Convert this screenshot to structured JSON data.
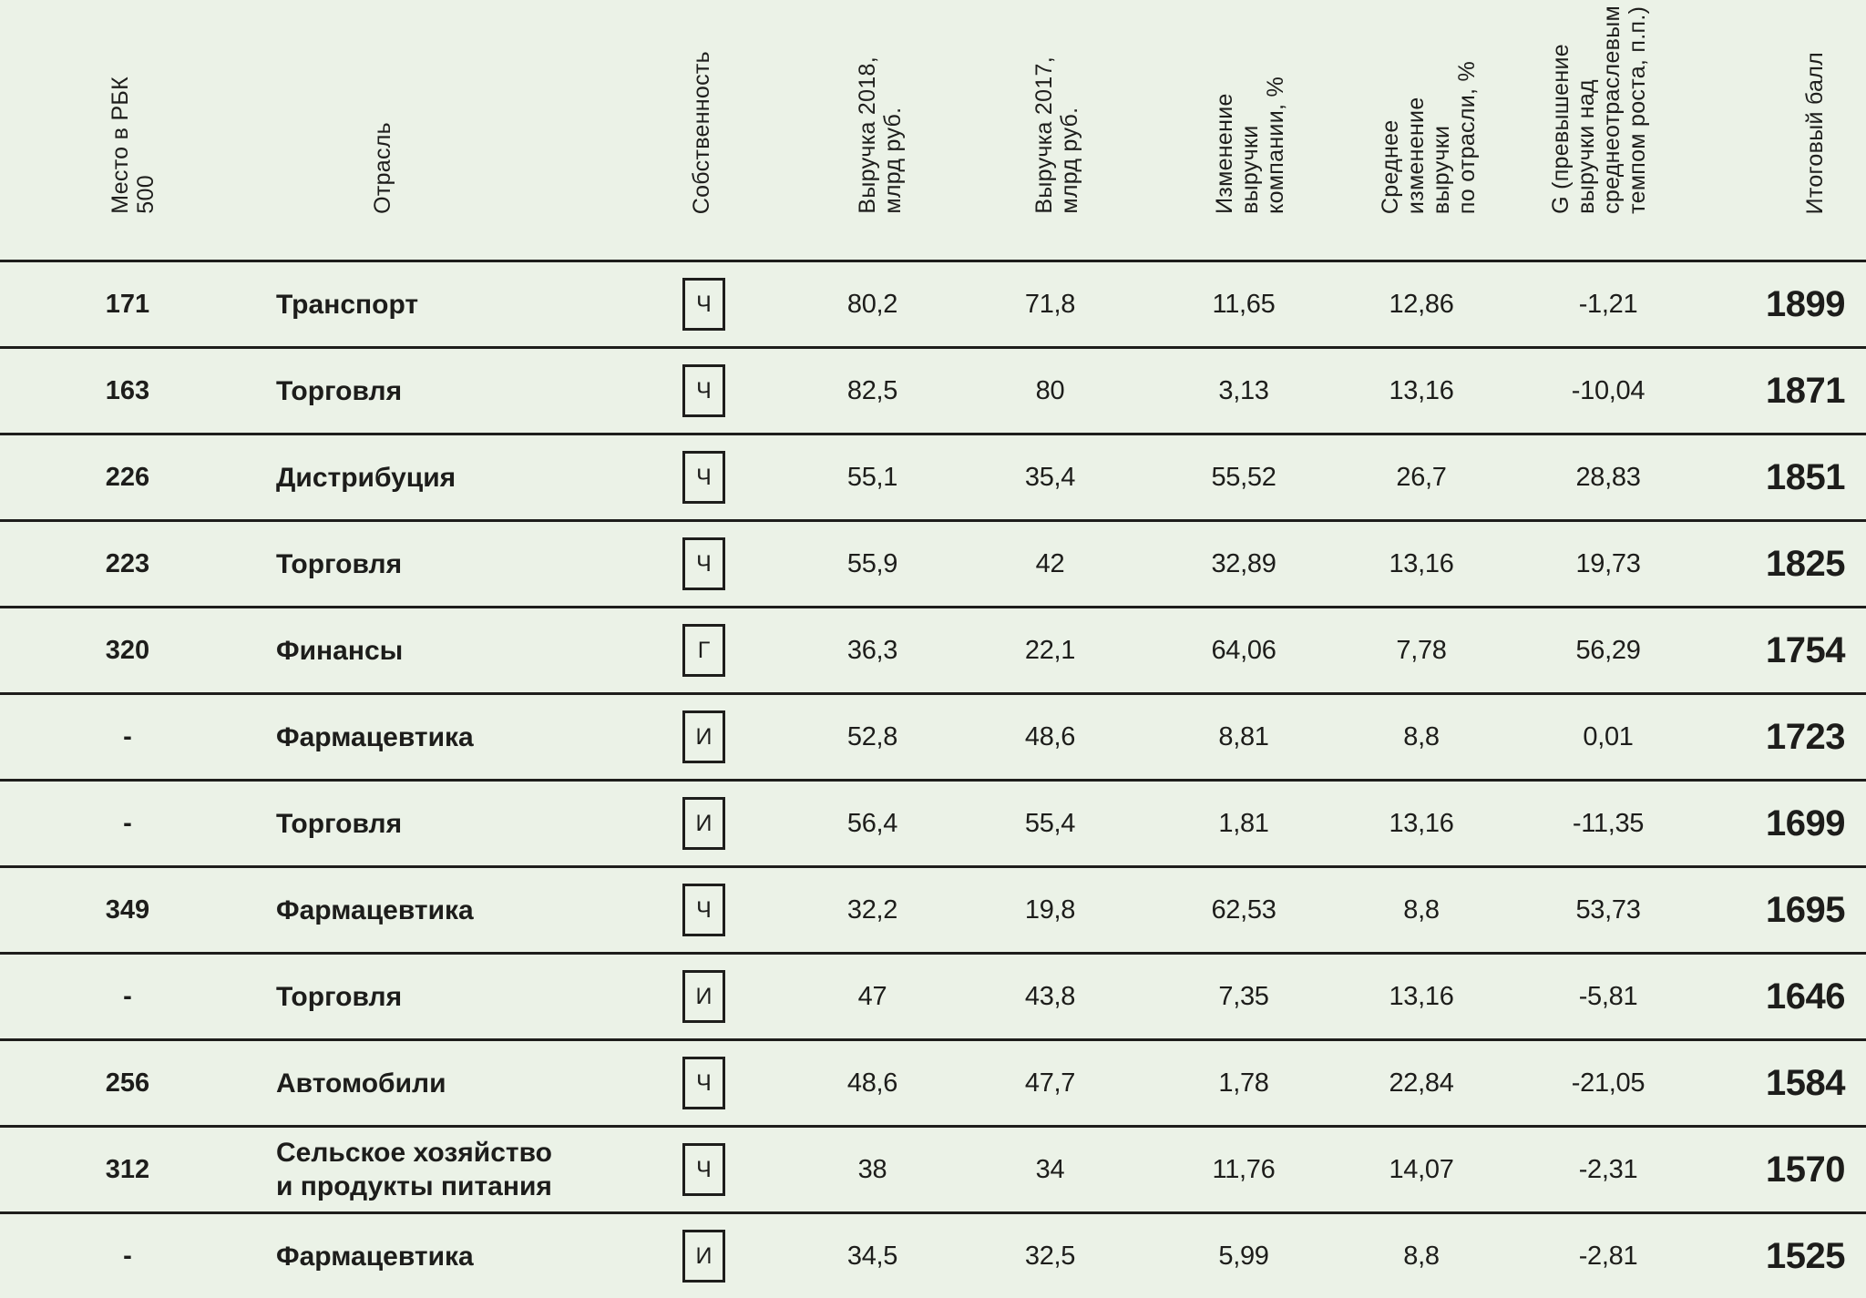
{
  "meta": {
    "background_color": "#ebf2e7",
    "line_color": "#1e1e1c",
    "text_color": "#1d1d1b"
  },
  "chart_data": {
    "type": "table",
    "title": "",
    "columns": [
      {
        "id": "place",
        "label": "Место в РБК\n500"
      },
      {
        "id": "industry",
        "label": "Отрасль"
      },
      {
        "id": "ownership",
        "label": "Собственность"
      },
      {
        "id": "rev2018",
        "label": "Выручка 2018,\nмлрд руб."
      },
      {
        "id": "rev2017",
        "label": "Выручка 2017,\nмлрд руб."
      },
      {
        "id": "change",
        "label": "Изменение\nвыручки\nкомпании, %"
      },
      {
        "id": "avg_change",
        "label": "Среднее\nизменение\nвыручки\nпо отрасли, %"
      },
      {
        "id": "g",
        "label": "G (превышение\nвыручки над\nсреднеотраслевым\nтемпом роста, п.п.)"
      },
      {
        "id": "score",
        "label": "Итоговый балл"
      }
    ],
    "rows": [
      {
        "place": "171",
        "industry": "Транспорт",
        "ownership": "Ч",
        "rev2018": "80,2",
        "rev2017": "71,8",
        "change": "11,65",
        "avg_change": "12,86",
        "g": "-1,21",
        "score": "1899"
      },
      {
        "place": "163",
        "industry": "Торговля",
        "ownership": "Ч",
        "rev2018": "82,5",
        "rev2017": "80",
        "change": "3,13",
        "avg_change": "13,16",
        "g": "-10,04",
        "score": "1871"
      },
      {
        "place": "226",
        "industry": "Дистрибуция",
        "ownership": "Ч",
        "rev2018": "55,1",
        "rev2017": "35,4",
        "change": "55,52",
        "avg_change": "26,7",
        "g": "28,83",
        "score": "1851"
      },
      {
        "place": "223",
        "industry": "Торговля",
        "ownership": "Ч",
        "rev2018": "55,9",
        "rev2017": "42",
        "change": "32,89",
        "avg_change": "13,16",
        "g": "19,73",
        "score": "1825"
      },
      {
        "place": "320",
        "industry": "Финансы",
        "ownership": "Г",
        "rev2018": "36,3",
        "rev2017": "22,1",
        "change": "64,06",
        "avg_change": "7,78",
        "g": "56,29",
        "score": "1754"
      },
      {
        "place": "-",
        "industry": "Фармацевтика",
        "ownership": "И",
        "rev2018": "52,8",
        "rev2017": "48,6",
        "change": "8,81",
        "avg_change": "8,8",
        "g": "0,01",
        "score": "1723"
      },
      {
        "place": "-",
        "industry": "Торговля",
        "ownership": "И",
        "rev2018": "56,4",
        "rev2017": "55,4",
        "change": "1,81",
        "avg_change": "13,16",
        "g": "-11,35",
        "score": "1699"
      },
      {
        "place": "349",
        "industry": "Фармацевтика",
        "ownership": "Ч",
        "rev2018": "32,2",
        "rev2017": "19,8",
        "change": "62,53",
        "avg_change": "8,8",
        "g": "53,73",
        "score": "1695"
      },
      {
        "place": "-",
        "industry": "Торговля",
        "ownership": "И",
        "rev2018": "47",
        "rev2017": "43,8",
        "change": "7,35",
        "avg_change": "13,16",
        "g": "-5,81",
        "score": "1646"
      },
      {
        "place": "256",
        "industry": "Автомобили",
        "ownership": "Ч",
        "rev2018": "48,6",
        "rev2017": "47,7",
        "change": "1,78",
        "avg_change": "22,84",
        "g": "-21,05",
        "score": "1584"
      },
      {
        "place": "312",
        "industry": "Сельское хозяйство\nи продукты питания",
        "ownership": "Ч",
        "rev2018": "38",
        "rev2017": "34",
        "change": "11,76",
        "avg_change": "14,07",
        "g": "-2,31",
        "score": "1570"
      },
      {
        "place": "-",
        "industry": "Фармацевтика",
        "ownership": "И",
        "rev2018": "34,5",
        "rev2017": "32,5",
        "change": "5,99",
        "avg_change": "8,8",
        "g": "-2,81",
        "score": "1525"
      }
    ]
  }
}
